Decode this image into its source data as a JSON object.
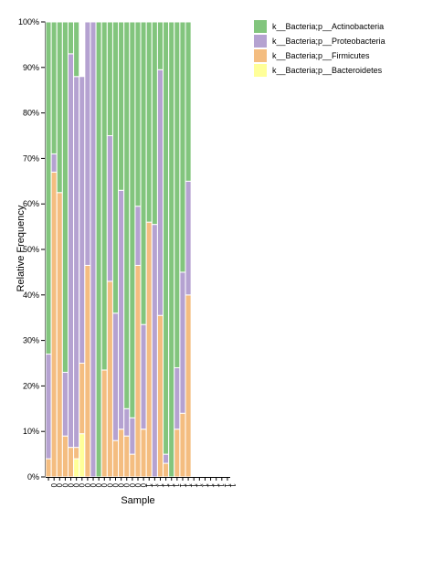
{
  "chart_data": {
    "type": "bar",
    "stacked": true,
    "xlabel": "Sample",
    "ylabel": "Relative Frequency",
    "ylim": [
      0,
      1
    ],
    "yticks": [
      "0%",
      "10%",
      "20%",
      "30%",
      "40%",
      "50%",
      "60%",
      "70%",
      "80%",
      "90%",
      "100%"
    ],
    "legend_position": "top-right",
    "categories": [
      "0",
      "0",
      "0",
      "0",
      "0",
      "0",
      "0",
      "0",
      "0",
      "0",
      "0",
      "0",
      "0",
      "0",
      "0",
      "0",
      "0",
      "1",
      "1",
      "1",
      "1",
      "1",
      "1",
      "1",
      "1",
      "1",
      "1",
      "1",
      "1",
      "1",
      "1",
      "1",
      "1"
    ],
    "series": [
      {
        "name": "k__Bacteria;p__Bacteroidetes",
        "color": "#ffff99",
        "values": [
          0,
          0,
          0,
          0,
          0,
          0.04,
          0.095,
          0,
          0,
          0,
          0,
          0,
          0,
          0,
          0,
          0,
          0,
          0,
          0,
          0,
          0,
          0,
          0,
          0,
          0,
          0,
          0,
          0,
          0,
          0,
          0,
          0,
          0
        ]
      },
      {
        "name": "k__Bacteria;p__Firmicutes",
        "color": "#f4bd80",
        "values": [
          0.04,
          0.67,
          0.625,
          0.09,
          0.065,
          0.025,
          0.155,
          0.465,
          0,
          0,
          0.235,
          0.43,
          0.08,
          0.105,
          0.09,
          0.05,
          0.465,
          0.105,
          0.56,
          0,
          0.355,
          0.03,
          0,
          0.105,
          0.14,
          0.4,
          0,
          0,
          0,
          0,
          0,
          0,
          0
        ]
      },
      {
        "name": "k__Bacteria;p__Proteobacteria",
        "color": "#b5a2d1",
        "values": [
          0.23,
          0.04,
          0,
          0.14,
          0.865,
          0.815,
          0.63,
          0.535,
          1.0,
          0,
          0.0,
          0.32,
          0.28,
          0.525,
          0.06,
          0.08,
          0.13,
          0.23,
          0,
          0.555,
          0.54,
          0.02,
          0,
          0.135,
          0.31,
          0.25,
          0,
          0,
          0,
          0,
          0,
          0,
          0
        ]
      },
      {
        "name": "k__Bacteria;p__Actinobacteria",
        "color": "#82c57d",
        "values": [
          0.73,
          0.29,
          0.375,
          0.77,
          0.07,
          0.12,
          0,
          0,
          0,
          1.0,
          0.765,
          0.25,
          0.64,
          0.37,
          0.85,
          0.87,
          0.405,
          0.665,
          0.44,
          0.445,
          0.105,
          0.95,
          1.0,
          0.76,
          0.55,
          0.35,
          0,
          0,
          0,
          0,
          0,
          0,
          0
        ]
      }
    ]
  }
}
